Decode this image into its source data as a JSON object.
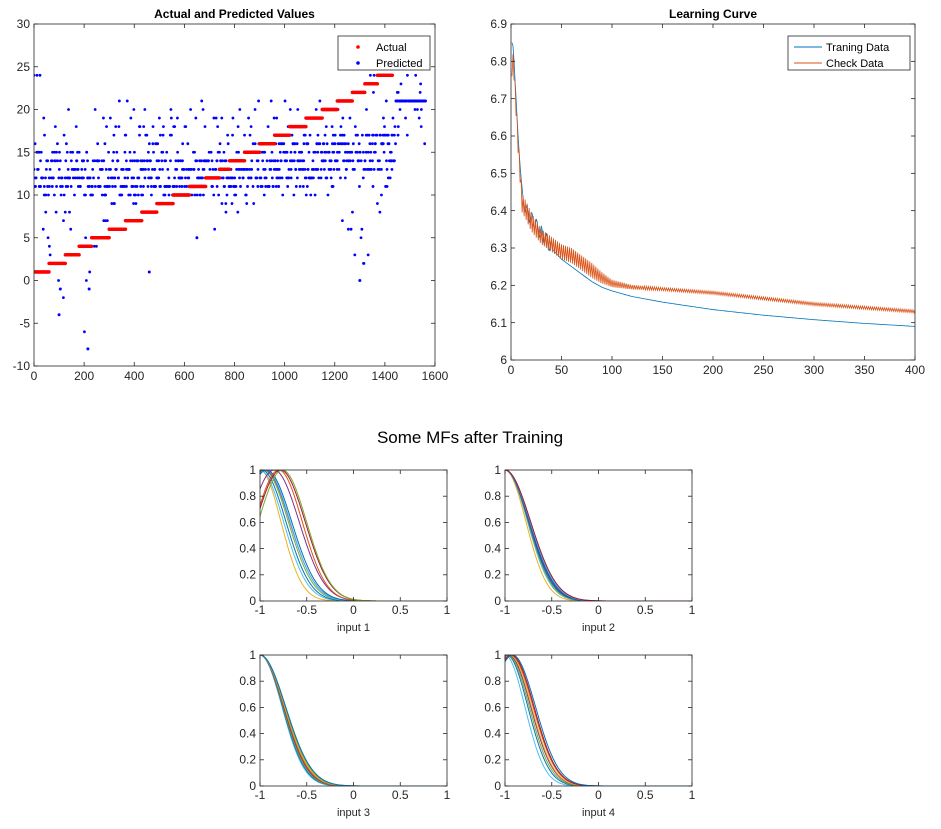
{
  "super_title": "Some MFs after Training",
  "chart_data": [
    {
      "id": "actual-predicted",
      "type": "scatter",
      "title": "Actual and Predicted Values",
      "xlabel": "",
      "ylabel": "",
      "xlim": [
        0,
        1600
      ],
      "ylim": [
        -10,
        30
      ],
      "x_ticks": [
        0,
        200,
        400,
        600,
        800,
        1000,
        1200,
        1400,
        1600
      ],
      "y_ticks": [
        -10,
        -5,
        0,
        5,
        10,
        15,
        20,
        25,
        30
      ],
      "legend_position": "top-right",
      "grid": false,
      "series": [
        {
          "name": "Actual",
          "color": "#ff0000",
          "marker": "dot",
          "segments": [
            {
              "x_start": 0,
              "x_end": 60,
              "y": 1
            },
            {
              "x_start": 60,
              "x_end": 125,
              "y": 2
            },
            {
              "x_start": 125,
              "x_end": 180,
              "y": 3
            },
            {
              "x_start": 180,
              "x_end": 230,
              "y": 4
            },
            {
              "x_start": 230,
              "x_end": 300,
              "y": 5
            },
            {
              "x_start": 300,
              "x_end": 365,
              "y": 6
            },
            {
              "x_start": 365,
              "x_end": 430,
              "y": 7
            },
            {
              "x_start": 430,
              "x_end": 490,
              "y": 8
            },
            {
              "x_start": 490,
              "x_end": 555,
              "y": 9
            },
            {
              "x_start": 555,
              "x_end": 620,
              "y": 10
            },
            {
              "x_start": 620,
              "x_end": 685,
              "y": 11
            },
            {
              "x_start": 685,
              "x_end": 740,
              "y": 12
            },
            {
              "x_start": 740,
              "x_end": 780,
              "y": 13
            },
            {
              "x_start": 780,
              "x_end": 840,
              "y": 14
            },
            {
              "x_start": 840,
              "x_end": 900,
              "y": 15
            },
            {
              "x_start": 900,
              "x_end": 960,
              "y": 16
            },
            {
              "x_start": 960,
              "x_end": 1020,
              "y": 17
            },
            {
              "x_start": 1020,
              "x_end": 1085,
              "y": 18
            },
            {
              "x_start": 1085,
              "x_end": 1150,
              "y": 19
            },
            {
              "x_start": 1150,
              "x_end": 1210,
              "y": 20
            },
            {
              "x_start": 1210,
              "x_end": 1270,
              "y": 21
            },
            {
              "x_start": 1270,
              "x_end": 1320,
              "y": 22
            },
            {
              "x_start": 1320,
              "x_end": 1370,
              "y": 23
            },
            {
              "x_start": 1370,
              "x_end": 1430,
              "y": 24
            }
          ]
        },
        {
          "name": "Predicted",
          "color": "#0000ff",
          "marker": "dot",
          "integer_valued": true,
          "envelope": [
            {
              "x": 0,
              "min": 8,
              "max": 21
            },
            {
              "x": 100,
              "min": -4,
              "max": 21
            },
            {
              "x": 200,
              "min": -8,
              "max": 21
            },
            {
              "x": 300,
              "min": 8,
              "max": 21
            },
            {
              "x": 400,
              "min": 9,
              "max": 21
            },
            {
              "x": 500,
              "min": 9,
              "max": 20
            },
            {
              "x": 600,
              "min": 10,
              "max": 22
            },
            {
              "x": 700,
              "min": 5,
              "max": 21
            },
            {
              "x": 800,
              "min": 8,
              "max": 21
            },
            {
              "x": 900,
              "min": 9,
              "max": 21
            },
            {
              "x": 1000,
              "min": 9,
              "max": 21
            },
            {
              "x": 1100,
              "min": 9,
              "max": 21
            },
            {
              "x": 1200,
              "min": 9,
              "max": 22
            },
            {
              "x": 1300,
              "min": 0,
              "max": 24
            },
            {
              "x": 1400,
              "min": 9,
              "max": 25
            },
            {
              "x": 1440,
              "min": 14,
              "max": 21
            },
            {
              "x": 1460,
              "min": 17,
              "max": 25
            },
            {
              "x": 1560,
              "min": 16,
              "max": 24
            }
          ],
          "outliers": [
            {
              "x": 100,
              "y": -4
            },
            {
              "x": 105,
              "y": -1
            },
            {
              "x": 215,
              "y": -8
            },
            {
              "x": 220,
              "y": -1
            },
            {
              "x": 460,
              "y": 1
            },
            {
              "x": 650,
              "y": 5
            },
            {
              "x": 1300,
              "y": 0
            },
            {
              "x": 1395,
              "y": 25
            }
          ]
        }
      ]
    },
    {
      "id": "learning-curve",
      "type": "line",
      "title": "Learning Curve",
      "xlabel": "",
      "ylabel": "",
      "xlim": [
        0,
        400
      ],
      "ylim": [
        6,
        6.9
      ],
      "x_ticks": [
        0,
        50,
        100,
        150,
        200,
        250,
        300,
        350,
        400
      ],
      "y_ticks": [
        6,
        6.1,
        6.2,
        6.3,
        6.4,
        6.5,
        6.6,
        6.7,
        6.8,
        6.9
      ],
      "legend_position": "top-right",
      "grid": false,
      "series": [
        {
          "name": "Traning Data",
          "color": "#0072bd",
          "x": [
            1,
            2,
            3,
            5,
            7,
            9,
            11,
            15,
            20,
            30,
            40,
            50,
            60,
            70,
            80,
            90,
            100,
            120,
            150,
            200,
            250,
            300,
            350,
            400
          ],
          "y": [
            6.85,
            6.84,
            6.8,
            6.7,
            6.6,
            6.52,
            6.44,
            6.4,
            6.38,
            6.34,
            6.3,
            6.27,
            6.25,
            6.23,
            6.21,
            6.195,
            6.185,
            6.17,
            6.155,
            6.135,
            6.12,
            6.108,
            6.098,
            6.09
          ]
        },
        {
          "name": "Check Data",
          "color": "#d95319",
          "oscillation": "alternating",
          "x": [
            1,
            2,
            3,
            5,
            7,
            9,
            11,
            15,
            20,
            30,
            40,
            50,
            60,
            70,
            80,
            90,
            100,
            120,
            150,
            200,
            250,
            300,
            350,
            400
          ],
          "y": [
            6.78,
            6.8,
            6.77,
            6.68,
            6.58,
            6.5,
            6.42,
            6.4,
            6.37,
            6.33,
            6.31,
            6.29,
            6.28,
            6.26,
            6.24,
            6.22,
            6.205,
            6.195,
            6.19,
            6.18,
            6.165,
            6.15,
            6.14,
            6.13
          ],
          "amplitude": [
            0.02,
            0.02,
            0.02,
            0.025,
            0.025,
            0.025,
            0.025,
            0.025,
            0.025,
            0.02,
            0.02,
            0.02,
            0.02,
            0.02,
            0.02,
            0.015,
            0.01,
            0.006,
            0.004,
            0.004,
            0.004,
            0.004,
            0.004,
            0.004
          ]
        }
      ]
    },
    {
      "id": "mf-input-1",
      "type": "line",
      "title": "",
      "xlabel": "input 1",
      "ylabel": "",
      "xlim": [
        -1,
        1
      ],
      "ylim": [
        0,
        1
      ],
      "x_ticks": [
        -1,
        -0.5,
        0,
        0.5,
        1
      ],
      "y_ticks": [
        0,
        0.2,
        0.4,
        0.6,
        0.8,
        1
      ],
      "curve_shape": "gaussian",
      "series": [
        {
          "center": -1.0,
          "sigma": 0.4,
          "color": "#edb120"
        },
        {
          "center": -1.0,
          "sigma": 0.45,
          "color": "#4dbeee"
        },
        {
          "center": -0.98,
          "sigma": 0.46,
          "color": "#0072bd"
        },
        {
          "center": -0.96,
          "sigma": 0.47,
          "color": "#77ac30"
        },
        {
          "center": -0.95,
          "sigma": 0.48,
          "color": "#7e2f8e"
        },
        {
          "center": -0.94,
          "sigma": 0.47,
          "color": "#4dbeee"
        },
        {
          "center": -0.93,
          "sigma": 0.48,
          "color": "#0072bd"
        },
        {
          "center": -0.85,
          "sigma": 0.48,
          "color": "#7e2f8e"
        },
        {
          "center": -0.8,
          "sigma": 0.45,
          "color": "#d95319"
        },
        {
          "center": -0.78,
          "sigma": 0.47,
          "color": "#a2142f"
        },
        {
          "center": -0.76,
          "sigma": 0.46,
          "color": "#77ac30"
        }
      ]
    },
    {
      "id": "mf-input-2",
      "type": "line",
      "title": "",
      "xlabel": "input 2",
      "ylabel": "",
      "xlim": [
        -1,
        1
      ],
      "ylim": [
        0,
        1
      ],
      "x_ticks": [
        -1,
        -0.5,
        0,
        0.5,
        1
      ],
      "y_ticks": [
        0,
        0.2,
        0.4,
        0.6,
        0.8,
        1
      ],
      "curve_shape": "gaussian",
      "series": [
        {
          "center": -1.0,
          "sigma": 0.4,
          "color": "#edb120"
        },
        {
          "center": -1.0,
          "sigma": 0.43,
          "color": "#4dbeee"
        },
        {
          "center": -1.0,
          "sigma": 0.44,
          "color": "#77ac30"
        },
        {
          "center": -1.0,
          "sigma": 0.45,
          "color": "#0072bd"
        },
        {
          "center": -1.0,
          "sigma": 0.46,
          "color": "#7e2f8e"
        },
        {
          "center": -1.0,
          "sigma": 0.47,
          "color": "#0072bd"
        },
        {
          "center": -1.0,
          "sigma": 0.48,
          "color": "#4dbeee"
        },
        {
          "center": -1.0,
          "sigma": 0.49,
          "color": "#a2142f"
        }
      ]
    },
    {
      "id": "mf-input-3",
      "type": "line",
      "title": "",
      "xlabel": "input 3",
      "ylabel": "",
      "xlim": [
        -1,
        1
      ],
      "ylim": [
        0,
        1
      ],
      "x_ticks": [
        -1,
        -0.5,
        0,
        0.5,
        1
      ],
      "y_ticks": [
        0,
        0.2,
        0.4,
        0.6,
        0.8,
        1
      ],
      "curve_shape": "gaussian",
      "series": [
        {
          "center": -1.0,
          "sigma": 0.42,
          "color": "#4dbeee"
        },
        {
          "center": -1.0,
          "sigma": 0.43,
          "color": "#0072bd"
        },
        {
          "center": -1.0,
          "sigma": 0.44,
          "color": "#77ac30"
        },
        {
          "center": -1.0,
          "sigma": 0.45,
          "color": "#7e2f8e"
        },
        {
          "center": -1.0,
          "sigma": 0.46,
          "color": "#d95319"
        },
        {
          "center": -1.0,
          "sigma": 0.47,
          "color": "#edb120"
        },
        {
          "center": -1.0,
          "sigma": 0.48,
          "color": "#77ac30"
        },
        {
          "center": -1.0,
          "sigma": 0.49,
          "color": "#0072bd"
        }
      ]
    },
    {
      "id": "mf-input-4",
      "type": "line",
      "title": "",
      "xlabel": "input 4",
      "ylabel": "",
      "xlim": [
        -1,
        1
      ],
      "ylim": [
        0,
        1
      ],
      "x_ticks": [
        -1,
        -0.5,
        0,
        0.5,
        1
      ],
      "y_ticks": [
        0,
        0.2,
        0.4,
        0.6,
        0.8,
        1
      ],
      "curve_shape": "gaussian",
      "series": [
        {
          "center": -1.0,
          "sigma": 0.38,
          "color": "#4dbeee"
        },
        {
          "center": -0.98,
          "sigma": 0.4,
          "color": "#0072bd"
        },
        {
          "center": -0.97,
          "sigma": 0.41,
          "color": "#77ac30"
        },
        {
          "center": -0.96,
          "sigma": 0.42,
          "color": "#7e2f8e"
        },
        {
          "center": -0.95,
          "sigma": 0.42,
          "color": "#edb120"
        },
        {
          "center": -0.94,
          "sigma": 0.43,
          "color": "#d95319"
        },
        {
          "center": -0.93,
          "sigma": 0.43,
          "color": "#a2142f"
        },
        {
          "center": -0.92,
          "sigma": 0.44,
          "color": "#0072bd"
        }
      ]
    }
  ]
}
